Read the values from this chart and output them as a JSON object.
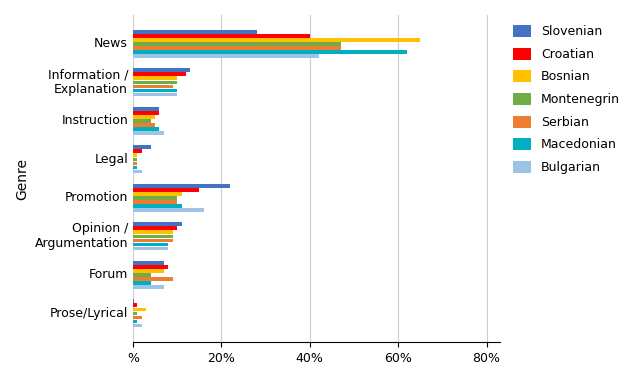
{
  "categories": [
    "News",
    "Information /\nExplanation",
    "Instruction",
    "Legal",
    "Promotion",
    "Opinion /\nArgumentation",
    "Forum",
    "Prose/Lyrical"
  ],
  "languages": [
    "Slovenian",
    "Croatian",
    "Bosnian",
    "Montenegrin",
    "Serbian",
    "Macedonian",
    "Bulgarian"
  ],
  "colors": [
    "#4472C4",
    "#FF0000",
    "#FFC000",
    "#70AD47",
    "#ED7D31",
    "#00B0C0",
    "#9DC3E6"
  ],
  "values": {
    "News": [
      28,
      40,
      65,
      47,
      47,
      62,
      42
    ],
    "Information /\nExplanation": [
      13,
      12,
      10,
      10,
      9,
      10,
      10
    ],
    "Instruction": [
      6,
      6,
      5,
      4,
      5,
      6,
      7
    ],
    "Legal": [
      4,
      2,
      1,
      1,
      1,
      1,
      2
    ],
    "Promotion": [
      22,
      15,
      11,
      10,
      10,
      11,
      16
    ],
    "Opinion /\nArgumentation": [
      11,
      10,
      9,
      9,
      9,
      8,
      8
    ],
    "Forum": [
      7,
      8,
      7,
      4,
      9,
      4,
      7
    ],
    "Prose/Lyrical": [
      0.3,
      1,
      3,
      1,
      2,
      1,
      2
    ]
  },
  "ylabel": "Genre",
  "xlim": [
    0,
    83
  ],
  "xticks": [
    0,
    20,
    40,
    60,
    80
  ],
  "xticklabels": [
    "%",
    "20%",
    "40%",
    "60%",
    "80%"
  ],
  "background_color": "#FFFFFF",
  "grid_color": "#CCCCCC"
}
